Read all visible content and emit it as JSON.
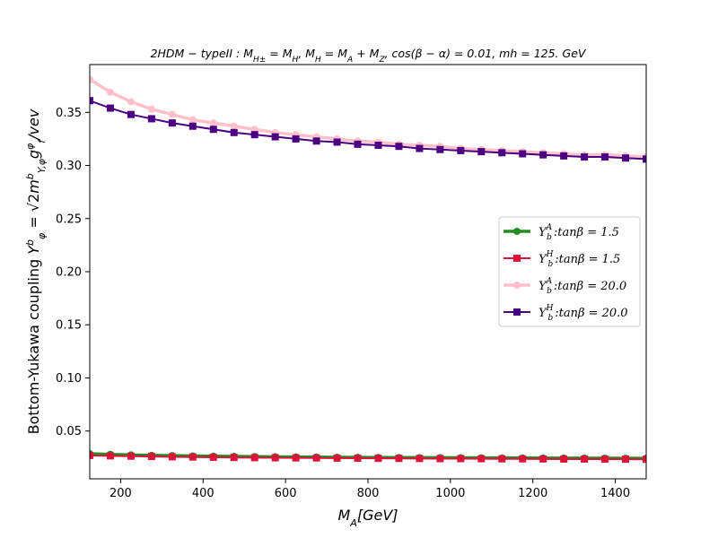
{
  "chart_data": {
    "type": "line",
    "title": "2HDM − typeII : M_H± = M_H, M_H = M_A + M_Z, cos(β − α) = 0.01, mh = 125. GeV",
    "xlabel": "M_A[GeV]",
    "ylabel": "Bottom-Yukawa  coupling Y_φ^b = √2 m_b^Y,φ g_f^φ/vev",
    "xlim": [
      125,
      1475
    ],
    "ylim": [
      0.005,
      0.395
    ],
    "xticks": [
      {
        "value": 200,
        "label": "200"
      },
      {
        "value": 400,
        "label": "400"
      },
      {
        "value": 600,
        "label": "600"
      },
      {
        "value": 800,
        "label": "800"
      },
      {
        "value": 1000,
        "label": "1000"
      },
      {
        "value": 1200,
        "label": "1200"
      },
      {
        "value": 1400,
        "label": "1400"
      }
    ],
    "yticks": [
      {
        "value": 0.05,
        "label": "0.05"
      },
      {
        "value": 0.1,
        "label": "0.10"
      },
      {
        "value": 0.15,
        "label": "0.15"
      },
      {
        "value": 0.2,
        "label": "0.20"
      },
      {
        "value": 0.25,
        "label": "0.25"
      },
      {
        "value": 0.3,
        "label": "0.30"
      },
      {
        "value": 0.35,
        "label": "0.35"
      }
    ],
    "grid": false,
    "legend": "center-right",
    "x": [
      125,
      175,
      225,
      275,
      325,
      375,
      425,
      475,
      525,
      575,
      625,
      675,
      725,
      775,
      825,
      875,
      925,
      975,
      1025,
      1075,
      1125,
      1175,
      1225,
      1275,
      1325,
      1375,
      1425,
      1475
    ],
    "series": [
      {
        "name": "Y_b^A : tanβ = 1.5",
        "label_main": "Y",
        "label_sub": "b",
        "label_sup": "A",
        "label_rest": ":tanβ = 1.5",
        "color": "#228b22",
        "marker": "circle",
        "line_width": 3.5,
        "values": [
          0.0286,
          0.028,
          0.0275,
          0.0271,
          0.0268,
          0.0265,
          0.0263,
          0.0261,
          0.0259,
          0.0257,
          0.0256,
          0.0255,
          0.0253,
          0.0252,
          0.0251,
          0.025,
          0.0249,
          0.0249,
          0.0248,
          0.0247,
          0.0246,
          0.0246,
          0.0245,
          0.0245,
          0.0244,
          0.0244,
          0.0243,
          0.0243
        ]
      },
      {
        "name": "Y_b^H : tanβ = 1.5",
        "label_main": "Y",
        "label_sub": "b",
        "label_sup": "H",
        "label_rest": ":tanβ = 1.5",
        "color": "#dc143c",
        "marker": "square",
        "line_width": 2,
        "values": [
          0.027,
          0.0266,
          0.0263,
          0.026,
          0.0257,
          0.0255,
          0.0253,
          0.0251,
          0.0249,
          0.0248,
          0.0247,
          0.0246,
          0.0245,
          0.0244,
          0.0243,
          0.0242,
          0.0241,
          0.024,
          0.024,
          0.0239,
          0.0238,
          0.0238,
          0.0237,
          0.0236,
          0.0236,
          0.0235,
          0.0235,
          0.0234
        ]
      },
      {
        "name": "Y_b^A : tanβ = 20.0",
        "label_main": "Y",
        "label_sub": "b",
        "label_sup": "A",
        "label_rest": ":tanβ = 20.0",
        "color": "#ffc0cb",
        "marker": "circle",
        "line_width": 3.5,
        "values": [
          0.381,
          0.369,
          0.36,
          0.353,
          0.348,
          0.343,
          0.34,
          0.337,
          0.334,
          0.331,
          0.329,
          0.327,
          0.325,
          0.323,
          0.322,
          0.32,
          0.319,
          0.318,
          0.316,
          0.315,
          0.314,
          0.313,
          0.312,
          0.311,
          0.31,
          0.31,
          0.309,
          0.308
        ]
      },
      {
        "name": "Y_b^H : tanβ = 20.0",
        "label_main": "Y",
        "label_sub": "b",
        "label_sup": "H",
        "label_rest": ":tanβ = 20.0",
        "color": "#4b0082",
        "marker": "square",
        "line_width": 2,
        "values": [
          0.361,
          0.354,
          0.348,
          0.344,
          0.34,
          0.337,
          0.334,
          0.331,
          0.329,
          0.327,
          0.325,
          0.323,
          0.322,
          0.32,
          0.319,
          0.318,
          0.316,
          0.315,
          0.314,
          0.313,
          0.312,
          0.311,
          0.31,
          0.309,
          0.308,
          0.308,
          0.307,
          0.306
        ]
      }
    ]
  }
}
